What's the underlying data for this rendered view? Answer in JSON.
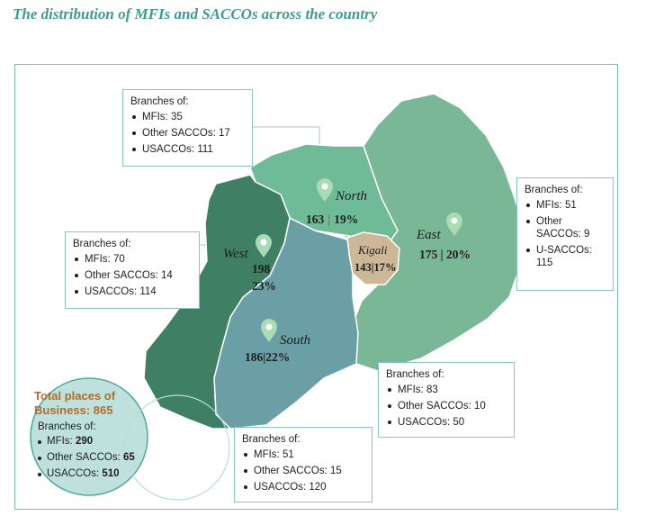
{
  "title": "The distribution of MFIs and SACCOs across the country",
  "colors": {
    "north": "#6fba97",
    "east": "#79b797",
    "west": "#3f7f64",
    "south": "#6b9fa6",
    "kigali": "#ccb896",
    "pin": "#a9dbb4",
    "title": "#3f9a93",
    "total_title": "#b96a24"
  },
  "regions": {
    "north": {
      "name": "North",
      "count": "163",
      "sep": "|",
      "pct": "19%"
    },
    "east": {
      "name": "East",
      "value": "175 | 20%"
    },
    "west": {
      "name": "West",
      "count": "198",
      "pct": "23%"
    },
    "south": {
      "name": "South",
      "value": "186|22%"
    },
    "kigali": {
      "name": "Kigali",
      "value": "143|17%"
    }
  },
  "boxes": {
    "north": {
      "heading": "Branches of:",
      "items": [
        "MFIs: 35",
        "Other SACCOs: 17",
        "USACCOs: 111"
      ]
    },
    "east": {
      "heading": "Branches of:",
      "items": [
        "MFIs: 51",
        "Other SACCOs: 9",
        "U-SACCOs: 115"
      ]
    },
    "west": {
      "heading": "Branches of:",
      "items": [
        "MFIs: 70",
        "Other SACCOs: 14",
        "USACCOs: 114"
      ]
    },
    "kigali": {
      "heading": "Branches of:",
      "items": [
        "MFIs: 83",
        "Other SACCOs: 10",
        "USACCOs: 50"
      ]
    },
    "south": {
      "heading": "Branches of:",
      "items": [
        "MFIs: 51",
        "Other SACCOs: 15",
        "USACCOs: 120"
      ]
    }
  },
  "total": {
    "title_line1": "Total places of",
    "title_line2": "Business: 865",
    "heading": "Branches of:",
    "mfis_label": "MFIs: ",
    "mfis_value": "290",
    "other_label": "Other SACCOs: ",
    "other_value": "65",
    "usaccos_label": "USACCOs: ",
    "usaccos_value": "510"
  }
}
